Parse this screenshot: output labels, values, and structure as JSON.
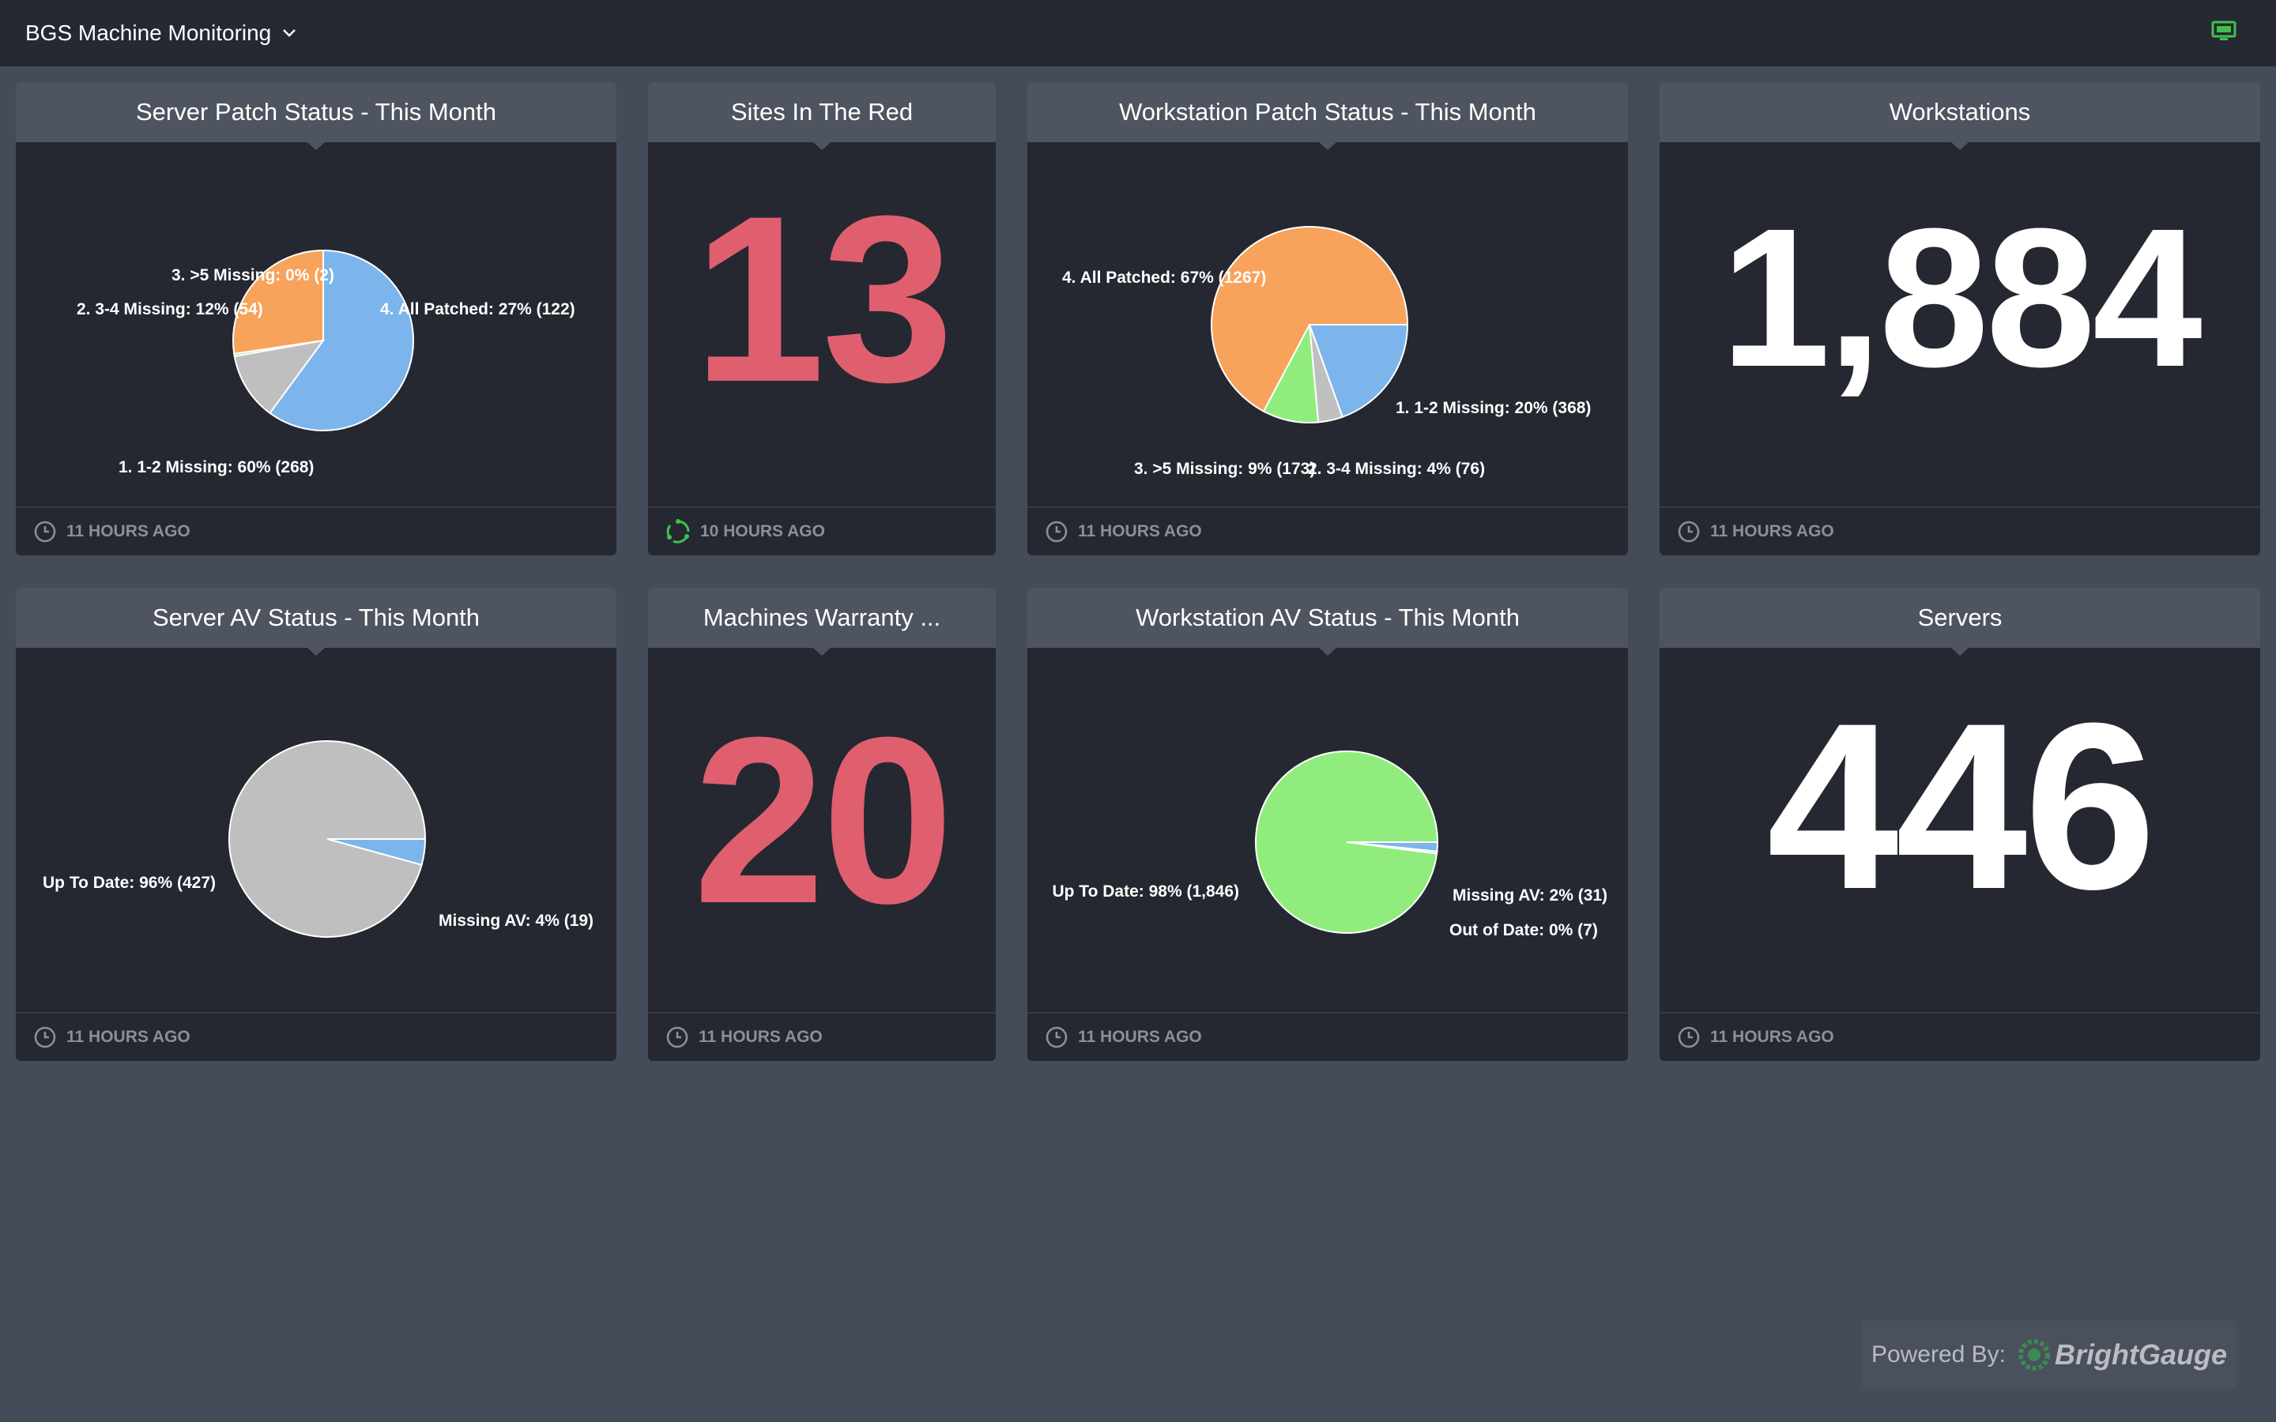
{
  "header": {
    "dashboard_title": "BGS Machine Monitoring",
    "accent_color": "#3ec24b"
  },
  "gauges": [
    {
      "title": "Server Patch Status - This Month",
      "updated": "11 HOURS AGO",
      "updated_icon": "clock-icon",
      "chart_data": {
        "type": "pie",
        "slices": [
          {
            "label": "1. 1-2 Missing: 60% (268)",
            "value": 268,
            "color": "#7cb5ec"
          },
          {
            "label": "2. 3-4 Missing: 12% (54)",
            "value": 54,
            "color": "#bfbfbf"
          },
          {
            "label": "3. >5 Missing: 0% (2)",
            "value": 2,
            "color": "#90ed7d"
          },
          {
            "label": "4. All Patched: 27% (122)",
            "value": 122,
            "color": "#f7a35c"
          }
        ]
      }
    },
    {
      "title": "Sites In The Red",
      "updated": "10 HOURS AGO",
      "updated_icon": "refresh-spinner-icon",
      "value": "13",
      "value_color": "#e05f6f"
    },
    {
      "title": "Workstation Patch Status - This Month",
      "updated": "11 HOURS AGO",
      "updated_icon": "clock-icon",
      "chart_data": {
        "type": "pie",
        "slices": [
          {
            "label": "1. 1-2 Missing: 20% (368)",
            "value": 368,
            "color": "#7cb5ec"
          },
          {
            "label": "2. 3-4 Missing: 4% (76)",
            "value": 76,
            "color": "#bfbfbf"
          },
          {
            "label": "3. >5 Missing: 9% (173)",
            "value": 173,
            "color": "#90ed7d"
          },
          {
            "label": "4. All Patched: 67% (1267)",
            "value": 1267,
            "color": "#f7a35c"
          }
        ]
      }
    },
    {
      "title": "Workstations",
      "updated": "11 HOURS AGO",
      "updated_icon": "clock-icon",
      "value": "1,884",
      "value_color": "#ffffff"
    },
    {
      "title": "Server AV Status - This Month",
      "updated": "11 HOURS AGO",
      "updated_icon": "clock-icon",
      "chart_data": {
        "type": "pie",
        "slices": [
          {
            "label": "Missing AV: 4% (19)",
            "value": 19,
            "color": "#7cb5ec"
          },
          {
            "label": "Up To Date: 96% (427)",
            "value": 427,
            "color": "#bfbfbf"
          }
        ]
      }
    },
    {
      "title": "Machines Warranty ...",
      "updated": "11 HOURS AGO",
      "updated_icon": "clock-icon",
      "value": "20",
      "value_color": "#e05f6f"
    },
    {
      "title": "Workstation AV Status - This Month",
      "updated": "11 HOURS AGO",
      "updated_icon": "clock-icon",
      "chart_data": {
        "type": "pie",
        "slices": [
          {
            "label": "Missing AV: 2% (31)",
            "value": 31,
            "color": "#7cb5ec"
          },
          {
            "label": "Out of Date: 0% (7)",
            "value": 7,
            "color": "#bfbfbf"
          },
          {
            "label": "Up To Date: 98% (1,846)",
            "value": 1846,
            "color": "#90ed7d"
          }
        ]
      }
    },
    {
      "title": "Servers",
      "updated": "11 HOURS AGO",
      "updated_icon": "clock-icon",
      "value": "446",
      "value_color": "#ffffff"
    }
  ],
  "footer": {
    "powered_by": "Powered By:",
    "brand": "BrightGauge"
  }
}
